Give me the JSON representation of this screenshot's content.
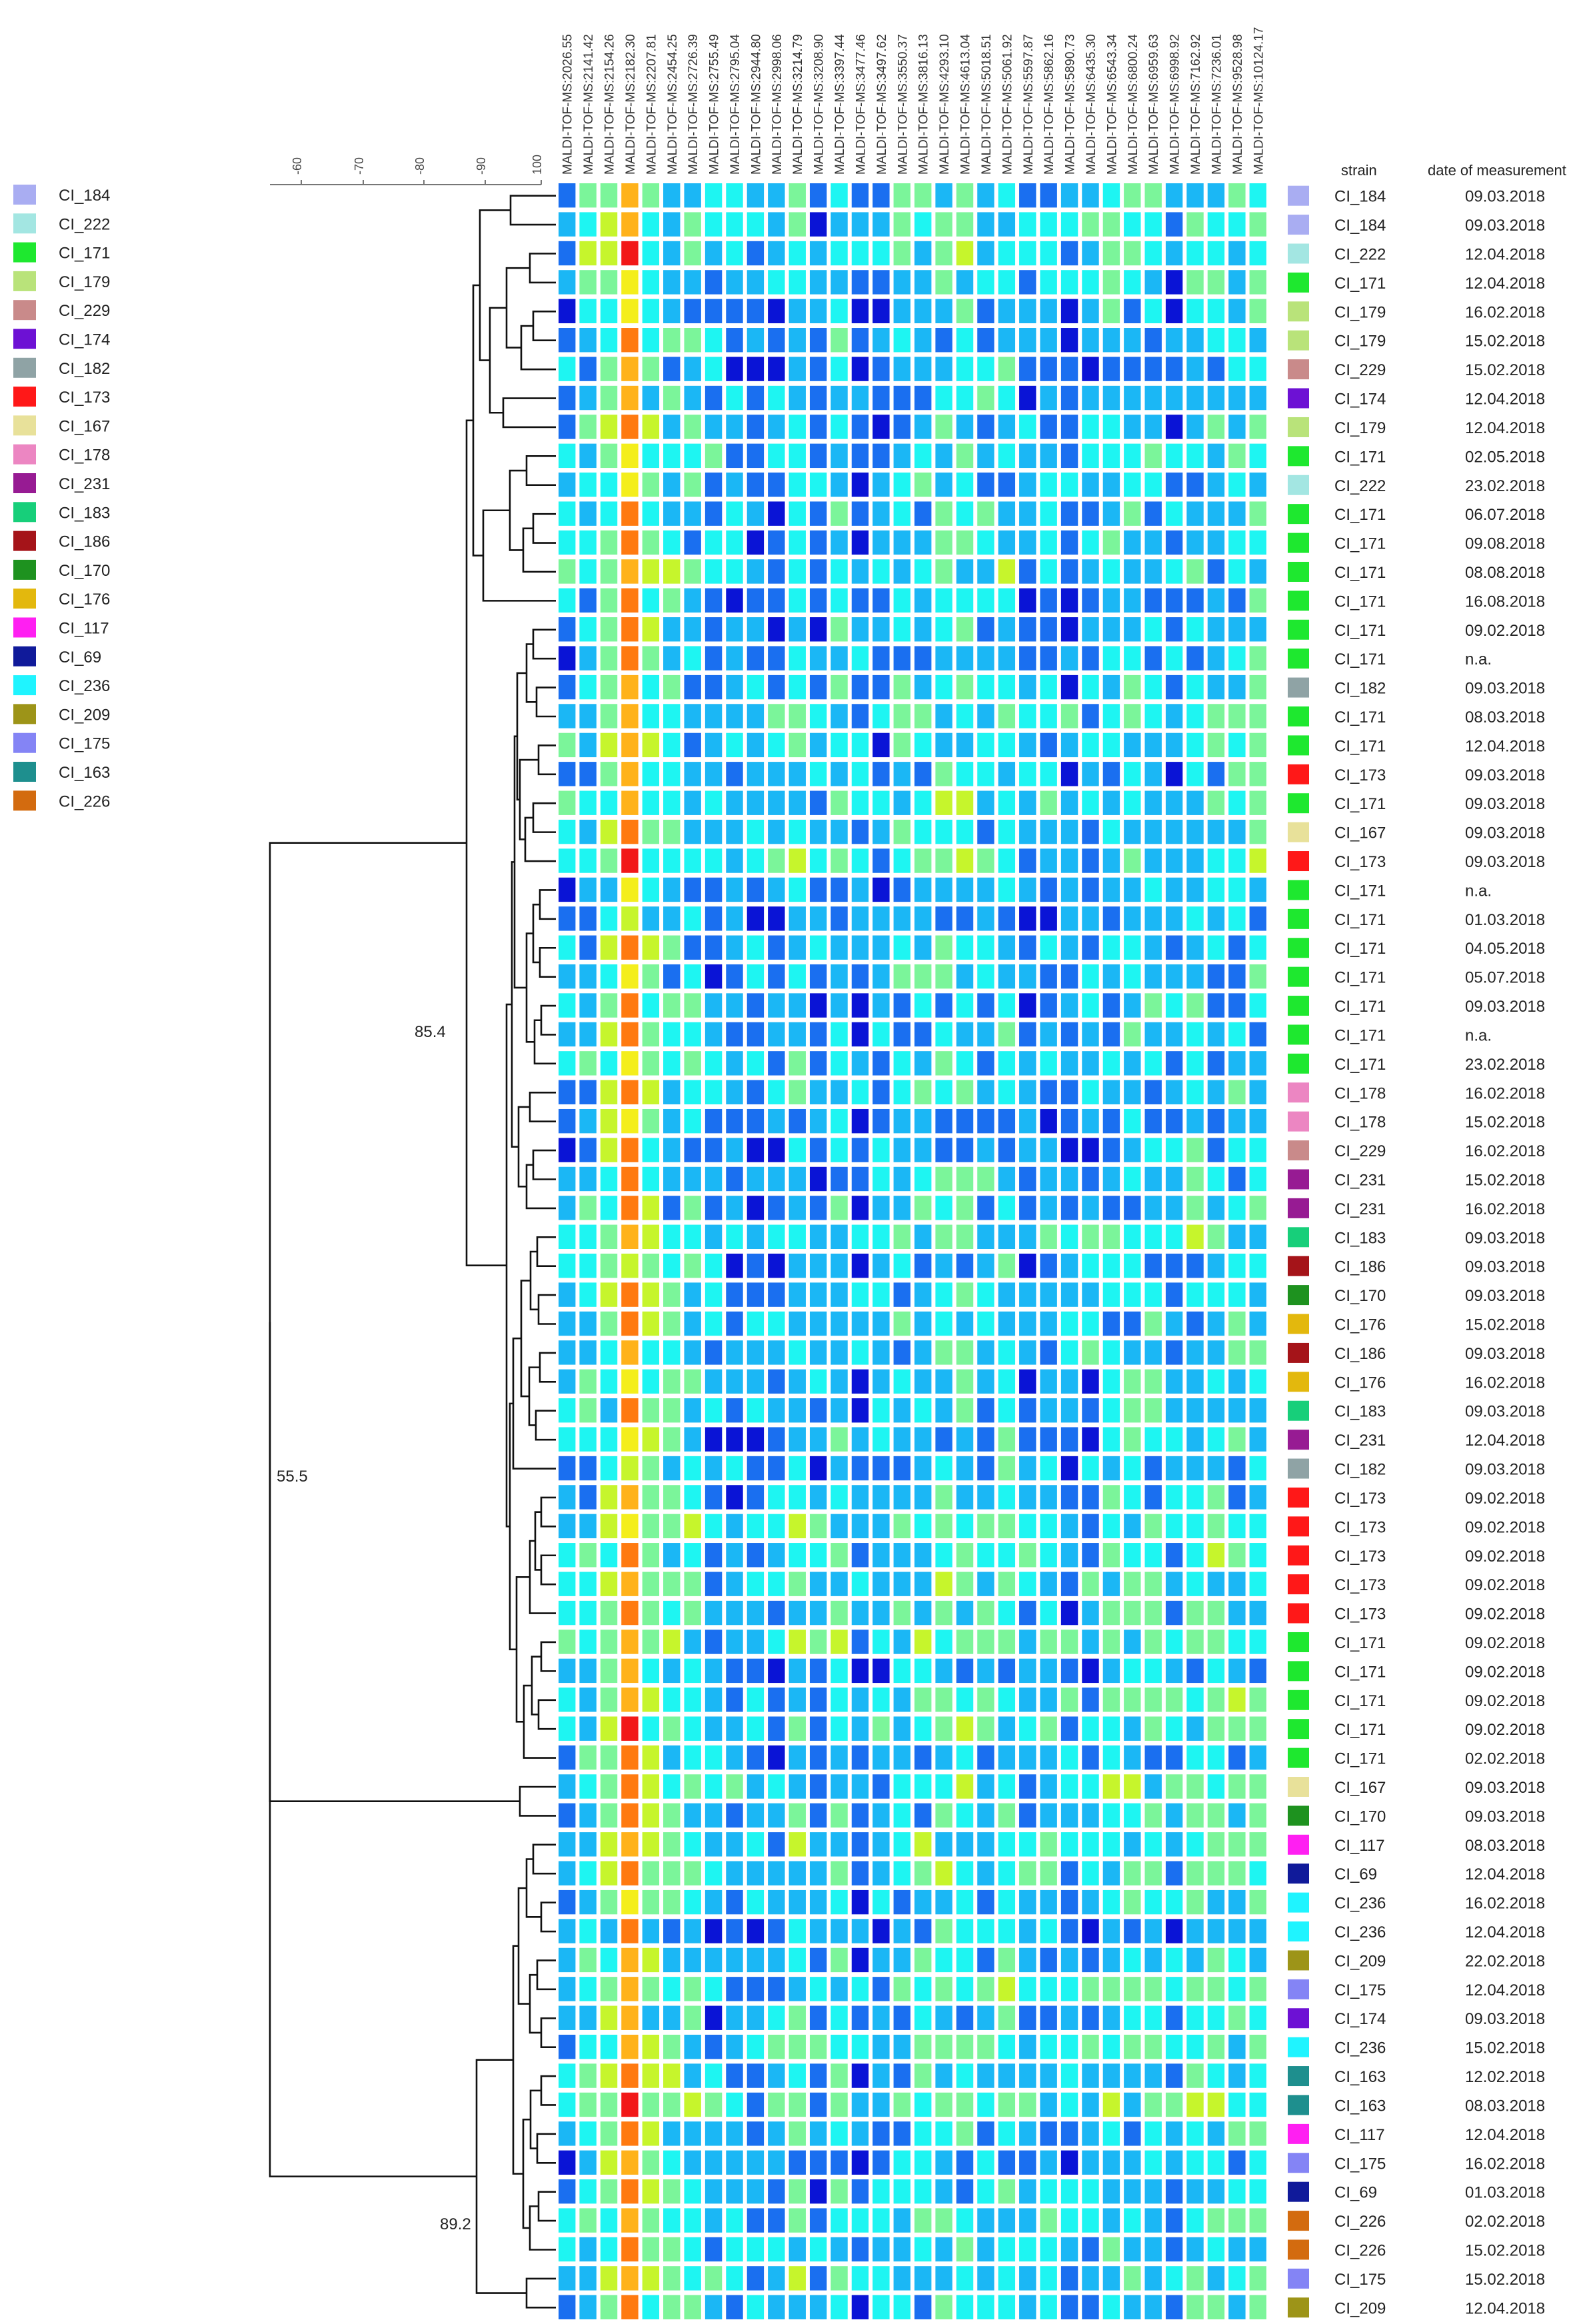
{
  "figure": {
    "legend": [
      {
        "label": "CI_184",
        "color": "#a9adf2"
      },
      {
        "label": "CI_222",
        "color": "#a3e6e2"
      },
      {
        "label": "CI_171",
        "color": "#1ee82f"
      },
      {
        "label": "CI_179",
        "color": "#b9e37a"
      },
      {
        "label": "CI_229",
        "color": "#c98a8a"
      },
      {
        "label": "CI_174",
        "color": "#6d11d4"
      },
      {
        "label": "CI_182",
        "color": "#8fa3a5"
      },
      {
        "label": "CI_173",
        "color": "#ff1818"
      },
      {
        "label": "CI_167",
        "color": "#e8e19a"
      },
      {
        "label": "CI_178",
        "color": "#ec86c2"
      },
      {
        "label": "CI_231",
        "color": "#971b93"
      },
      {
        "label": "CI_183",
        "color": "#17cf7a"
      },
      {
        "label": "CI_186",
        "color": "#a51419"
      },
      {
        "label": "CI_170",
        "color": "#1e921f"
      },
      {
        "label": "CI_176",
        "color": "#e3b80d"
      },
      {
        "label": "CI_117",
        "color": "#ff1ff2"
      },
      {
        "label": "CI_69",
        "color": "#101a9a"
      },
      {
        "label": "CI_236",
        "color": "#1ff4ff"
      },
      {
        "label": "CI_209",
        "color": "#9d9418"
      },
      {
        "label": "CI_175",
        "color": "#8484f5"
      },
      {
        "label": "CI_163",
        "color": "#1e8f8e"
      },
      {
        "label": "CI_226",
        "color": "#d36b0f"
      }
    ],
    "scale_ticks": [
      "-60",
      "-70",
      "-80",
      "-90",
      "100"
    ],
    "node_labels": {
      "top": "85.4",
      "root": "55.5",
      "bottom": "89.2"
    },
    "table_headers": {
      "strain": "strain",
      "date": "date of measurement"
    },
    "columns": [
      "MALDI-TOF-MS:2026.55",
      "MALDI-TOF-MS:2141.42",
      "MALDI-TOF-MS:2154.26",
      "MALDI-TOF-MS:2182.30",
      "MALDI-TOF-MS:2207.81",
      "MALDI-TOF-MS:2454.25",
      "MALDI-TOF-MS:2726.39",
      "MALDI-TOF-MS:2755.49",
      "MALDI-TOF-MS:2795.04",
      "MALDI-TOF-MS:2944.80",
      "MALDI-TOF-MS:2998.06",
      "MALDI-TOF-MS:3214.79",
      "MALDI-TOF-MS:3208.90",
      "MALDI-TOF-MS:3397.44",
      "MALDI-TOF-MS:3477.46",
      "MALDI-TOF-MS:3497.62",
      "MALDI-TOF-MS:3550.37",
      "MALDI-TOF-MS:3816.13",
      "MALDI-TOF-MS:4293.10",
      "MALDI-TOF-MS:4613.04",
      "MALDI-TOF-MS:5018.51",
      "MALDI-TOF-MS:5061.92",
      "MALDI-TOF-MS:5597.87",
      "MALDI-TOF-MS:5862.16",
      "MALDI-TOF-MS:5890.73",
      "MALDI-TOF-MS:6435.30",
      "MALDI-TOF-MS:6543.34",
      "MALDI-TOF-MS:6800.24",
      "MALDI-TOF-MS:6959.63",
      "MALDI-TOF-MS:6998.92",
      "MALDI-TOF-MS:7162.92",
      "MALDI-TOF-MS:7236.01",
      "MALDI-TOF-MS:9528.98",
      "MALDI-TOF-MS:10124.17"
    ],
    "rows": [
      {
        "strain": "CI_184",
        "color": "#a9adf2",
        "date": "09.03.2018"
      },
      {
        "strain": "CI_184",
        "color": "#a9adf2",
        "date": "09.03.2018"
      },
      {
        "strain": "CI_222",
        "color": "#a3e6e2",
        "date": "12.04.2018"
      },
      {
        "strain": "CI_171",
        "color": "#1ee82f",
        "date": "12.04.2018"
      },
      {
        "strain": "CI_179",
        "color": "#b9e37a",
        "date": "16.02.2018"
      },
      {
        "strain": "CI_179",
        "color": "#b9e37a",
        "date": "15.02.2018"
      },
      {
        "strain": "CI_229",
        "color": "#c98a8a",
        "date": "15.02.2018"
      },
      {
        "strain": "CI_174",
        "color": "#6d11d4",
        "date": "12.04.2018"
      },
      {
        "strain": "CI_179",
        "color": "#b9e37a",
        "date": "12.04.2018"
      },
      {
        "strain": "CI_171",
        "color": "#1ee82f",
        "date": "02.05.2018"
      },
      {
        "strain": "CI_222",
        "color": "#a3e6e2",
        "date": "23.02.2018"
      },
      {
        "strain": "CI_171",
        "color": "#1ee82f",
        "date": "06.07.2018"
      },
      {
        "strain": "CI_171",
        "color": "#1ee82f",
        "date": "09.08.2018"
      },
      {
        "strain": "CI_171",
        "color": "#1ee82f",
        "date": "08.08.2018"
      },
      {
        "strain": "CI_171",
        "color": "#1ee82f",
        "date": "16.08.2018"
      },
      {
        "strain": "CI_171",
        "color": "#1ee82f",
        "date": "09.02.2018"
      },
      {
        "strain": "CI_171",
        "color": "#1ee82f",
        "date": "n.a."
      },
      {
        "strain": "CI_182",
        "color": "#8fa3a5",
        "date": "09.03.2018"
      },
      {
        "strain": "CI_171",
        "color": "#1ee82f",
        "date": "08.03.2018"
      },
      {
        "strain": "CI_171",
        "color": "#1ee82f",
        "date": "12.04.2018"
      },
      {
        "strain": "CI_173",
        "color": "#ff1818",
        "date": "09.03.2018"
      },
      {
        "strain": "CI_171",
        "color": "#1ee82f",
        "date": "09.03.2018"
      },
      {
        "strain": "CI_167",
        "color": "#e8e19a",
        "date": "09.03.2018"
      },
      {
        "strain": "CI_173",
        "color": "#ff1818",
        "date": "09.03.2018"
      },
      {
        "strain": "CI_171",
        "color": "#1ee82f",
        "date": "n.a."
      },
      {
        "strain": "CI_171",
        "color": "#1ee82f",
        "date": "01.03.2018"
      },
      {
        "strain": "CI_171",
        "color": "#1ee82f",
        "date": "04.05.2018"
      },
      {
        "strain": "CI_171",
        "color": "#1ee82f",
        "date": "05.07.2018"
      },
      {
        "strain": "CI_171",
        "color": "#1ee82f",
        "date": "09.03.2018"
      },
      {
        "strain": "CI_171",
        "color": "#1ee82f",
        "date": "n.a."
      },
      {
        "strain": "CI_171",
        "color": "#1ee82f",
        "date": "23.02.2018"
      },
      {
        "strain": "CI_178",
        "color": "#ec86c2",
        "date": "16.02.2018"
      },
      {
        "strain": "CI_178",
        "color": "#ec86c2",
        "date": "15.02.2018"
      },
      {
        "strain": "CI_229",
        "color": "#c98a8a",
        "date": "16.02.2018"
      },
      {
        "strain": "CI_231",
        "color": "#971b93",
        "date": "15.02.2018"
      },
      {
        "strain": "CI_231",
        "color": "#971b93",
        "date": "16.02.2018"
      },
      {
        "strain": "CI_183",
        "color": "#17cf7a",
        "date": "09.03.2018"
      },
      {
        "strain": "CI_186",
        "color": "#a51419",
        "date": "09.03.2018"
      },
      {
        "strain": "CI_170",
        "color": "#1e921f",
        "date": "09.03.2018"
      },
      {
        "strain": "CI_176",
        "color": "#e3b80d",
        "date": "15.02.2018"
      },
      {
        "strain": "CI_186",
        "color": "#a51419",
        "date": "09.03.2018"
      },
      {
        "strain": "CI_176",
        "color": "#e3b80d",
        "date": "16.02.2018"
      },
      {
        "strain": "CI_183",
        "color": "#17cf7a",
        "date": "09.03.2018"
      },
      {
        "strain": "CI_231",
        "color": "#971b93",
        "date": "12.04.2018"
      },
      {
        "strain": "CI_182",
        "color": "#8fa3a5",
        "date": "09.03.2018"
      },
      {
        "strain": "CI_173",
        "color": "#ff1818",
        "date": "09.02.2018"
      },
      {
        "strain": "CI_173",
        "color": "#ff1818",
        "date": "09.02.2018"
      },
      {
        "strain": "CI_173",
        "color": "#ff1818",
        "date": "09.02.2018"
      },
      {
        "strain": "CI_173",
        "color": "#ff1818",
        "date": "09.02.2018"
      },
      {
        "strain": "CI_173",
        "color": "#ff1818",
        "date": "09.02.2018"
      },
      {
        "strain": "CI_171",
        "color": "#1ee82f",
        "date": "09.02.2018"
      },
      {
        "strain": "CI_171",
        "color": "#1ee82f",
        "date": "09.02.2018"
      },
      {
        "strain": "CI_171",
        "color": "#1ee82f",
        "date": "09.02.2018"
      },
      {
        "strain": "CI_171",
        "color": "#1ee82f",
        "date": "09.02.2018"
      },
      {
        "strain": "CI_171",
        "color": "#1ee82f",
        "date": "02.02.2018"
      },
      {
        "strain": "CI_167",
        "color": "#e8e19a",
        "date": "09.03.2018"
      },
      {
        "strain": "CI_170",
        "color": "#1e921f",
        "date": "09.03.2018"
      },
      {
        "strain": "CI_117",
        "color": "#ff1ff2",
        "date": "08.03.2018"
      },
      {
        "strain": "CI_69",
        "color": "#101a9a",
        "date": "12.04.2018"
      },
      {
        "strain": "CI_236",
        "color": "#1ff4ff",
        "date": "16.02.2018"
      },
      {
        "strain": "CI_236",
        "color": "#1ff4ff",
        "date": "12.04.2018"
      },
      {
        "strain": "CI_209",
        "color": "#9d9418",
        "date": "22.02.2018"
      },
      {
        "strain": "CI_175",
        "color": "#8484f5",
        "date": "12.04.2018"
      },
      {
        "strain": "CI_174",
        "color": "#6d11d4",
        "date": "09.03.2018"
      },
      {
        "strain": "CI_236",
        "color": "#1ff4ff",
        "date": "15.02.2018"
      },
      {
        "strain": "CI_163",
        "color": "#1e8f8e",
        "date": "12.02.2018"
      },
      {
        "strain": "CI_163",
        "color": "#1e8f8e",
        "date": "08.03.2018"
      },
      {
        "strain": "CI_117",
        "color": "#ff1ff2",
        "date": "12.04.2018"
      },
      {
        "strain": "CI_175",
        "color": "#8484f5",
        "date": "16.02.2018"
      },
      {
        "strain": "CI_69",
        "color": "#101a9a",
        "date": "01.03.2018"
      },
      {
        "strain": "CI_226",
        "color": "#d36b0f",
        "date": "02.02.2018"
      },
      {
        "strain": "CI_226",
        "color": "#d36b0f",
        "date": "15.02.2018"
      },
      {
        "strain": "CI_175",
        "color": "#8484f5",
        "date": "15.02.2018"
      },
      {
        "strain": "CI_209",
        "color": "#9d9418",
        "date": "12.04.2018"
      }
    ],
    "heat_palette": [
      "#0a14d6",
      "#1a6ff0",
      "#1bb7f5",
      "#1ef5f2",
      "#7bf59a",
      "#c6f52c",
      "#f4ee1c",
      "#ffb21a",
      "#ff7a10",
      "#f21818"
    ]
  }
}
